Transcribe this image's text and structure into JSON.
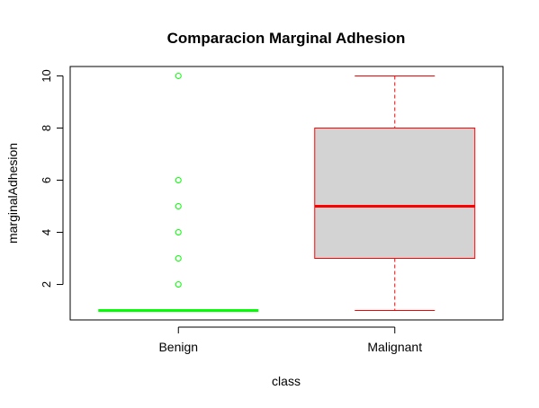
{
  "chart_data": {
    "type": "boxplot",
    "title": "Comparacion Marginal Adhesion",
    "xlabel": "class",
    "ylabel": "marginalAdhesion",
    "ylim": [
      0.64,
      10.36
    ],
    "yticks": [
      2,
      4,
      6,
      8,
      10
    ],
    "categories": [
      "Benign",
      "Malignant"
    ],
    "boxes": [
      {
        "name": "Benign",
        "color": "#00ff00",
        "fill": "#d3d3d3",
        "min": 1,
        "q1": 1,
        "median": 1,
        "q3": 1,
        "max": 1,
        "outliers": [
          2,
          3,
          4,
          5,
          6,
          10
        ]
      },
      {
        "name": "Malignant",
        "color": "#ff0000",
        "fill": "#d3d3d3",
        "min": 1,
        "q1": 3,
        "median": 5,
        "q3": 8,
        "max": 10,
        "outliers": []
      }
    ],
    "grid": false,
    "legend": "none"
  }
}
